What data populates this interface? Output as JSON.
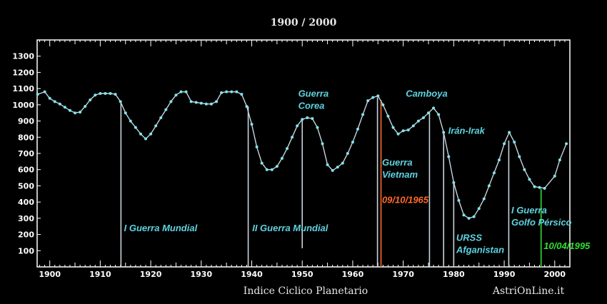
{
  "chart_data": {
    "type": "line",
    "title": "1900  /  2000",
    "xlabel": "Indice Ciclico Planetario",
    "credit": "AstriOnLine.it",
    "xlim": [
      1897.5,
      2003
    ],
    "ylim": [
      0,
      1400
    ],
    "x_ticks": [
      1900,
      1910,
      1920,
      1930,
      1940,
      1950,
      1960,
      1970,
      1980,
      1990,
      2000
    ],
    "y_ticks": [
      100,
      200,
      300,
      400,
      500,
      600,
      700,
      800,
      900,
      1000,
      1100,
      1200,
      1300
    ],
    "grid": false,
    "colors": {
      "line": "#c8d4dc",
      "marker": "#7fe6ee",
      "event": "#c8d4dc",
      "label": "#5fd3e0",
      "date1": "#ff6a2a",
      "date2": "#33dd33"
    },
    "series": [
      {
        "points": [
          [
            1897.6,
            1065
          ],
          [
            1899,
            1080
          ],
          [
            1900,
            1040
          ],
          [
            1901,
            1020
          ],
          [
            1902,
            1005
          ],
          [
            1903,
            985
          ],
          [
            1904,
            965
          ],
          [
            1905,
            950
          ],
          [
            1906,
            955
          ],
          [
            1907,
            990
          ],
          [
            1908,
            1030
          ],
          [
            1909,
            1060
          ],
          [
            1910,
            1070
          ],
          [
            1911,
            1070
          ],
          [
            1912,
            1070
          ],
          [
            1913,
            1065
          ],
          [
            1914,
            1020
          ],
          [
            1915,
            950
          ],
          [
            1916,
            900
          ],
          [
            1917,
            860
          ],
          [
            1918,
            820
          ],
          [
            1919,
            790
          ],
          [
            1920,
            820
          ],
          [
            1921,
            870
          ],
          [
            1922,
            920
          ],
          [
            1923,
            970
          ],
          [
            1924,
            1020
          ],
          [
            1925,
            1060
          ],
          [
            1926,
            1080
          ],
          [
            1927,
            1080
          ],
          [
            1928,
            1020
          ],
          [
            1929,
            1015
          ],
          [
            1930,
            1010
          ],
          [
            1931,
            1005
          ],
          [
            1932,
            1005
          ],
          [
            1933,
            1020
          ],
          [
            1934,
            1075
          ],
          [
            1935,
            1080
          ],
          [
            1936,
            1080
          ],
          [
            1937,
            1080
          ],
          [
            1938,
            1065
          ],
          [
            1939,
            990
          ],
          [
            1940,
            880
          ],
          [
            1941,
            740
          ],
          [
            1942,
            640
          ],
          [
            1943,
            600
          ],
          [
            1944,
            600
          ],
          [
            1945,
            620
          ],
          [
            1946,
            670
          ],
          [
            1947,
            730
          ],
          [
            1948,
            800
          ],
          [
            1949,
            870
          ],
          [
            1950,
            910
          ],
          [
            1951,
            920
          ],
          [
            1952,
            915
          ],
          [
            1953,
            860
          ],
          [
            1954,
            760
          ],
          [
            1955,
            630
          ],
          [
            1956,
            595
          ],
          [
            1957,
            615
          ],
          [
            1958,
            640
          ],
          [
            1959,
            700
          ],
          [
            1960,
            770
          ],
          [
            1961,
            850
          ],
          [
            1962,
            940
          ],
          [
            1963,
            1025
          ],
          [
            1964,
            1045
          ],
          [
            1965,
            1055
          ],
          [
            1966,
            1000
          ],
          [
            1967,
            930
          ],
          [
            1968,
            860
          ],
          [
            1969,
            820
          ],
          [
            1970,
            840
          ],
          [
            1971,
            845
          ],
          [
            1972,
            870
          ],
          [
            1973,
            900
          ],
          [
            1974,
            920
          ],
          [
            1975,
            950
          ],
          [
            1976,
            980
          ],
          [
            1977,
            940
          ],
          [
            1978,
            830
          ],
          [
            1979,
            680
          ],
          [
            1980,
            520
          ],
          [
            1981,
            410
          ],
          [
            1982,
            320
          ],
          [
            1983,
            300
          ],
          [
            1984,
            310
          ],
          [
            1985,
            360
          ],
          [
            1986,
            420
          ],
          [
            1987,
            500
          ],
          [
            1988,
            580
          ],
          [
            1989,
            660
          ],
          [
            1990,
            760
          ],
          [
            1991,
            830
          ],
          [
            1992,
            770
          ],
          [
            1993,
            680
          ],
          [
            1994,
            600
          ],
          [
            1995,
            540
          ],
          [
            1996,
            495
          ],
          [
            1997,
            490
          ],
          [
            1998,
            485
          ],
          [
            2000,
            560
          ],
          [
            2001,
            660
          ],
          [
            2002.3,
            760
          ]
        ]
      }
    ],
    "events": [
      {
        "x": 1914.1,
        "y": 1020,
        "label": "I Guerra Mundial",
        "color": "#c8d4dc"
      },
      {
        "x": 1939.3,
        "y": 990,
        "label": "II Guerra Mundial",
        "color": "#c8d4dc"
      },
      {
        "x": 1950.0,
        "y": 910,
        "label": "Guerra Corea",
        "color": "#c8d4dc",
        "y_bottom": 115
      },
      {
        "x": 1964.9,
        "y": 1045,
        "label": "Guerra Vietnam",
        "color": "#c8d4dc"
      },
      {
        "x": 1965.6,
        "y": 1030,
        "label": "09/10/1965",
        "color": "#ff6a2a"
      },
      {
        "x": 1975.2,
        "y": 955,
        "label": "Camboya",
        "color": "#c8d4dc"
      },
      {
        "x": 1978.0,
        "y": 830,
        "label": "Irán-Irak",
        "color": "#c8d4dc"
      },
      {
        "x": 1980.0,
        "y": 520,
        "label": "URSS Afganistan",
        "color": "#c8d4dc"
      },
      {
        "x": 1990.9,
        "y": 780,
        "label": "I Guerra Golfo Pérsico",
        "color": "#c8d4dc"
      },
      {
        "x": 1997.3,
        "y": 480,
        "label": "10/04/1995",
        "color": "#33dd33"
      }
    ],
    "annotations": [
      {
        "text": "I Guerra Mundial",
        "x": 1914.7,
        "y": 220,
        "color": "#5fd3e0"
      },
      {
        "text": "II Guerra Mundial",
        "x": 1940.1,
        "y": 220,
        "color": "#5fd3e0"
      },
      {
        "text": "Guerra",
        "x": 1949.2,
        "y": 1050,
        "color": "#5fd3e0"
      },
      {
        "text": "Corea",
        "x": 1949.2,
        "y": 975,
        "color": "#5fd3e0"
      },
      {
        "text": "Guerra",
        "x": 1965.8,
        "y": 625,
        "color": "#5fd3e0"
      },
      {
        "text": "Vietnam",
        "x": 1965.8,
        "y": 550,
        "color": "#5fd3e0"
      },
      {
        "text": "09/10/1965",
        "x": 1965.8,
        "y": 395,
        "color": "#ff6a2a"
      },
      {
        "text": "Camboya",
        "x": 1970.5,
        "y": 1050,
        "color": "#5fd3e0"
      },
      {
        "text": "Irán-Irak",
        "x": 1978.9,
        "y": 820,
        "color": "#5fd3e0"
      },
      {
        "text": "URSS",
        "x": 1980.5,
        "y": 160,
        "color": "#5fd3e0"
      },
      {
        "text": "Afganistan",
        "x": 1980.5,
        "y": 85,
        "color": "#5fd3e0"
      },
      {
        "text": "I Guerra",
        "x": 1991.4,
        "y": 330,
        "color": "#5fd3e0"
      },
      {
        "text": "Golfo Pérsico",
        "x": 1991.4,
        "y": 255,
        "color": "#5fd3e0"
      },
      {
        "text": "10/04/1995",
        "x": 1997.8,
        "y": 110,
        "color": "#33dd33"
      }
    ]
  }
}
